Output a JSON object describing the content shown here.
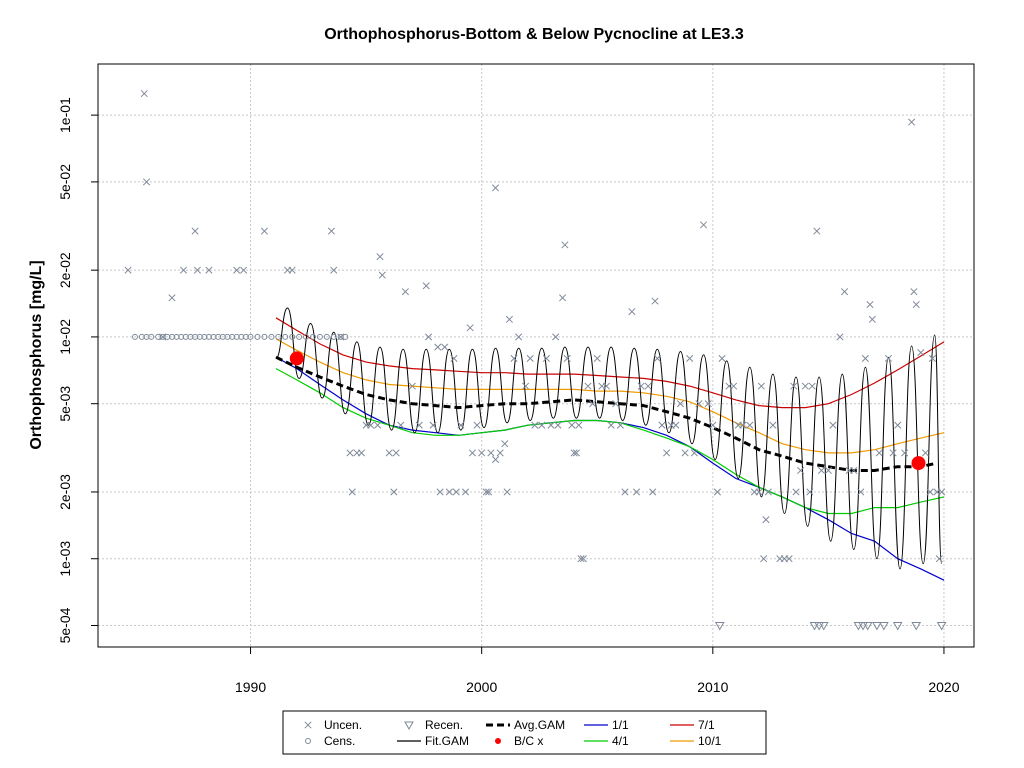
{
  "chart_data": {
    "type": "scatter",
    "title": "Orthophosphorus-Bottom & Below Pycnocline at LE3.3",
    "xlabel": "",
    "ylabel": "Orthophosphorus [mg/L]",
    "y_scale": "log",
    "xlim": [
      1983.4,
      2021.3
    ],
    "ylim": [
      0.0004,
      0.17
    ],
    "x_ticks": [
      1990,
      2000,
      2010,
      2020
    ],
    "x_tick_labels": [
      "1990",
      "2000",
      "2010",
      "2020"
    ],
    "y_ticks": [
      0.0005,
      0.001,
      0.002,
      0.005,
      0.01,
      0.02,
      0.05,
      0.1
    ],
    "y_tick_labels": [
      "5e-04",
      "1e-03",
      "2e-03",
      "5e-03",
      "1e-02",
      "2e-02",
      "5e-02",
      "1e-01"
    ],
    "grid": true,
    "legend_position": "bottom",
    "colors": {
      "uncensored": "#7f8a99",
      "censored": "#7f8a99",
      "recensored": "#7f8a99",
      "fit_gam": "#000000",
      "avg_gam": "#000000",
      "bc": "#ff0000",
      "p1_1": "#0000cd",
      "p4_1": "#00cd00",
      "p7_1": "#cd0000",
      "p10_1": "#ee9a00",
      "grid": "#c8c8c8"
    },
    "legend": [
      {
        "key": "uncen",
        "label": "Uncen."
      },
      {
        "key": "recen",
        "label": "Recen."
      },
      {
        "key": "avg",
        "label": "Avg.GAM"
      },
      {
        "key": "p11",
        "label": "1/1"
      },
      {
        "key": "p71",
        "label": "7/1"
      },
      {
        "key": "cens",
        "label": "Cens."
      },
      {
        "key": "fit",
        "label": "Fit.GAM"
      },
      {
        "key": "bc",
        "label": "B/C x"
      },
      {
        "key": "p41",
        "label": "4/1"
      },
      {
        "key": "p101",
        "label": "10/1"
      }
    ],
    "uncensored_points": [
      [
        1984.7,
        0.02
      ],
      [
        1985.4,
        0.125
      ],
      [
        1985.5,
        0.05
      ],
      [
        1986.2,
        0.01
      ],
      [
        1986.6,
        0.015
      ],
      [
        1987.1,
        0.02
      ],
      [
        1987.6,
        0.03
      ],
      [
        1987.7,
        0.02
      ],
      [
        1988.2,
        0.02
      ],
      [
        1989.4,
        0.02
      ],
      [
        1989.7,
        0.02
      ],
      [
        1990.6,
        0.03
      ],
      [
        1991.6,
        0.02
      ],
      [
        1991.8,
        0.02
      ],
      [
        1993.5,
        0.03
      ],
      [
        1993.6,
        0.02
      ],
      [
        1993.9,
        0.01
      ],
      [
        1994.3,
        0.003
      ],
      [
        1994.4,
        0.002
      ],
      [
        1994.6,
        0.003
      ],
      [
        1994.8,
        0.003
      ],
      [
        1995.0,
        0.004
      ],
      [
        1995.2,
        0.004
      ],
      [
        1995.5,
        0.004
      ],
      [
        1995.6,
        0.023
      ],
      [
        1995.7,
        0.019
      ],
      [
        1996.0,
        0.003
      ],
      [
        1996.2,
        0.002
      ],
      [
        1996.3,
        0.003
      ],
      [
        1996.5,
        0.004
      ],
      [
        1996.7,
        0.016
      ],
      [
        1997.0,
        0.006
      ],
      [
        1997.3,
        0.004
      ],
      [
        1997.6,
        0.017
      ],
      [
        1997.7,
        0.01
      ],
      [
        1997.9,
        0.004
      ],
      [
        1998.1,
        0.009
      ],
      [
        1998.2,
        0.002
      ],
      [
        1998.4,
        0.009
      ],
      [
        1998.6,
        0.002
      ],
      [
        1998.8,
        0.008
      ],
      [
        1998.9,
        0.002
      ],
      [
        1999.1,
        0.004
      ],
      [
        1999.3,
        0.002
      ],
      [
        1999.5,
        0.011
      ],
      [
        1999.6,
        0.003
      ],
      [
        1999.8,
        0.004
      ],
      [
        2000.0,
        0.003
      ],
      [
        2000.2,
        0.002
      ],
      [
        2000.3,
        0.002
      ],
      [
        2000.4,
        0.003
      ],
      [
        2000.6,
        0.0028
      ],
      [
        2000.6,
        0.047
      ],
      [
        2000.8,
        0.003
      ],
      [
        2001.0,
        0.0033
      ],
      [
        2001.1,
        0.002
      ],
      [
        2001.2,
        0.012
      ],
      [
        2001.4,
        0.008
      ],
      [
        2001.6,
        0.01
      ],
      [
        2001.9,
        0.006
      ],
      [
        2002.1,
        0.008
      ],
      [
        2002.3,
        0.004
      ],
      [
        2002.6,
        0.004
      ],
      [
        2002.8,
        0.008
      ],
      [
        2003.0,
        0.004
      ],
      [
        2003.2,
        0.01
      ],
      [
        2003.3,
        0.004
      ],
      [
        2003.5,
        0.015
      ],
      [
        2003.6,
        0.026
      ],
      [
        2003.7,
        0.008
      ],
      [
        2003.9,
        0.004
      ],
      [
        2004.0,
        0.003
      ],
      [
        2004.1,
        0.003
      ],
      [
        2004.2,
        0.004
      ],
      [
        2004.3,
        0.001
      ],
      [
        2004.4,
        0.001
      ],
      [
        2004.6,
        0.006
      ],
      [
        2004.8,
        0.005
      ],
      [
        2005.0,
        0.008
      ],
      [
        2005.2,
        0.006
      ],
      [
        2005.4,
        0.006
      ],
      [
        2005.6,
        0.004
      ],
      [
        2005.8,
        0.005
      ],
      [
        2006.0,
        0.004
      ],
      [
        2006.2,
        0.002
      ],
      [
        2006.5,
        0.013
      ],
      [
        2006.7,
        0.002
      ],
      [
        2006.9,
        0.006
      ],
      [
        2007.2,
        0.006
      ],
      [
        2007.4,
        0.002
      ],
      [
        2007.5,
        0.0145
      ],
      [
        2007.6,
        0.008
      ],
      [
        2007.8,
        0.004
      ],
      [
        2008.0,
        0.003
      ],
      [
        2008.2,
        0.004
      ],
      [
        2008.4,
        0.004
      ],
      [
        2008.6,
        0.005
      ],
      [
        2008.8,
        0.003
      ],
      [
        2009.0,
        0.008
      ],
      [
        2009.2,
        0.003
      ],
      [
        2009.4,
        0.005
      ],
      [
        2009.6,
        0.032
      ],
      [
        2009.8,
        0.005
      ],
      [
        2010.0,
        0.004
      ],
      [
        2010.2,
        0.002
      ],
      [
        2010.4,
        0.008
      ],
      [
        2010.7,
        0.006
      ],
      [
        2010.9,
        0.006
      ],
      [
        2011.1,
        0.004
      ],
      [
        2011.3,
        0.004
      ],
      [
        2011.6,
        0.004
      ],
      [
        2011.8,
        0.002
      ],
      [
        2012.0,
        0.002
      ],
      [
        2012.1,
        0.006
      ],
      [
        2012.2,
        0.001
      ],
      [
        2012.3,
        0.0015
      ],
      [
        2012.4,
        0.002
      ],
      [
        2012.6,
        0.004
      ],
      [
        2012.9,
        0.001
      ],
      [
        2013.1,
        0.001
      ],
      [
        2013.3,
        0.001
      ],
      [
        2013.5,
        0.006
      ],
      [
        2013.6,
        0.002
      ],
      [
        2013.8,
        0.0025
      ],
      [
        2014.0,
        0.006
      ],
      [
        2014.2,
        0.002
      ],
      [
        2014.3,
        0.006
      ],
      [
        2014.5,
        0.03
      ],
      [
        2014.7,
        0.0025
      ],
      [
        2015.0,
        0.0025
      ],
      [
        2015.2,
        0.004
      ],
      [
        2015.5,
        0.01
      ],
      [
        2015.7,
        0.016
      ],
      [
        2015.9,
        0.0025
      ],
      [
        2016.1,
        0.0025
      ],
      [
        2016.4,
        0.002
      ],
      [
        2016.6,
        0.008
      ],
      [
        2016.8,
        0.014
      ],
      [
        2016.9,
        0.012
      ],
      [
        2017.2,
        0.003
      ],
      [
        2017.6,
        0.008
      ],
      [
        2017.8,
        0.003
      ],
      [
        2018.0,
        0.004
      ],
      [
        2018.3,
        0.003
      ],
      [
        2018.6,
        0.093
      ],
      [
        2018.7,
        0.016
      ],
      [
        2018.8,
        0.014
      ],
      [
        2019.0,
        0.0085
      ],
      [
        2019.2,
        0.003
      ],
      [
        2019.4,
        0.002
      ],
      [
        2019.5,
        0.008
      ],
      [
        2019.7,
        0.002
      ],
      [
        2019.8,
        0.001
      ],
      [
        2019.9,
        0.002
      ]
    ],
    "censored_points": [
      [
        1985.0,
        0.01
      ],
      [
        1985.3,
        0.01
      ],
      [
        1985.5,
        0.01
      ],
      [
        1985.7,
        0.01
      ],
      [
        1986.0,
        0.01
      ],
      [
        1986.2,
        0.01
      ],
      [
        1986.4,
        0.01
      ],
      [
        1986.6,
        0.01
      ],
      [
        1986.8,
        0.01
      ],
      [
        1987.0,
        0.01
      ],
      [
        1987.2,
        0.01
      ],
      [
        1987.4,
        0.01
      ],
      [
        1987.6,
        0.01
      ],
      [
        1987.8,
        0.01
      ],
      [
        1988.0,
        0.01
      ],
      [
        1988.2,
        0.01
      ],
      [
        1988.4,
        0.01
      ],
      [
        1988.6,
        0.01
      ],
      [
        1988.8,
        0.01
      ],
      [
        1989.0,
        0.01
      ],
      [
        1989.2,
        0.01
      ],
      [
        1989.4,
        0.01
      ],
      [
        1989.6,
        0.01
      ],
      [
        1989.8,
        0.01
      ],
      [
        1990.0,
        0.01
      ],
      [
        1990.3,
        0.01
      ],
      [
        1990.6,
        0.01
      ],
      [
        1990.9,
        0.01
      ],
      [
        1991.2,
        0.01
      ],
      [
        1991.5,
        0.01
      ],
      [
        1991.8,
        0.01
      ],
      [
        1992.1,
        0.01
      ],
      [
        1992.4,
        0.01
      ],
      [
        1992.7,
        0.01
      ],
      [
        1993.0,
        0.01
      ],
      [
        1993.3,
        0.01
      ],
      [
        1993.6,
        0.01
      ],
      [
        1993.9,
        0.01
      ],
      [
        1994.1,
        0.01
      ]
    ],
    "recensored_points": [
      [
        2010.3,
        0.0005
      ],
      [
        2014.4,
        0.0005
      ],
      [
        2014.6,
        0.0005
      ],
      [
        2014.8,
        0.0005
      ],
      [
        2016.3,
        0.0005
      ],
      [
        2016.5,
        0.0005
      ],
      [
        2016.7,
        0.0005
      ],
      [
        2017.1,
        0.0005
      ],
      [
        2017.4,
        0.0005
      ],
      [
        2018.0,
        0.0005
      ],
      [
        2018.8,
        0.0005
      ],
      [
        2019.9,
        0.0005
      ]
    ],
    "bc_points": [
      [
        1992.0,
        0.008
      ],
      [
        2018.9,
        0.0027
      ]
    ],
    "fit_gam": {
      "x_start": 1991.1,
      "x_end": 2019.9,
      "peaks_x": [
        1991.6,
        1992.6,
        1993.6,
        1994.6,
        1995.6,
        1996.6,
        1997.6,
        1998.6,
        1999.6,
        2000.6,
        2001.6,
        2002.6,
        2003.6,
        2004.6,
        2005.6,
        2006.6,
        2007.6,
        2008.6,
        2009.6,
        2010.6,
        2011.6,
        2012.6,
        2013.6,
        2014.6,
        2015.6,
        2016.6,
        2017.6,
        2018.6,
        2019.6
      ],
      "peaks_y": [
        0.0135,
        0.0115,
        0.0105,
        0.0095,
        0.009,
        0.0088,
        0.0088,
        0.0088,
        0.0088,
        0.0089,
        0.0089,
        0.0089,
        0.009,
        0.009,
        0.009,
        0.0089,
        0.0088,
        0.0086,
        0.0083,
        0.0078,
        0.0073,
        0.0068,
        0.0066,
        0.0066,
        0.0068,
        0.0073,
        0.0081,
        0.0091,
        0.0102
      ],
      "troughs_x": [
        1991.1,
        1992.1,
        1993.1,
        1994.1,
        1995.1,
        1996.1,
        1997.1,
        1998.1,
        1999.1,
        2000.1,
        2001.1,
        2002.1,
        2003.1,
        2004.1,
        2005.1,
        2006.1,
        2007.1,
        2008.1,
        2009.1,
        2010.1,
        2011.1,
        2012.1,
        2013.1,
        2014.1,
        2015.1,
        2016.1,
        2017.1,
        2018.1,
        2019.1,
        2019.9
      ],
      "troughs_y": [
        0.008,
        0.0065,
        0.0053,
        0.0045,
        0.004,
        0.0038,
        0.0037,
        0.0037,
        0.0038,
        0.0039,
        0.0041,
        0.0042,
        0.0043,
        0.0043,
        0.0043,
        0.0042,
        0.004,
        0.0037,
        0.0033,
        0.0028,
        0.0023,
        0.0019,
        0.0016,
        0.0014,
        0.0012,
        0.0011,
        0.001,
        0.0009,
        0.00095,
        0.00095
      ]
    },
    "avg_gam": {
      "x": [
        1991.1,
        1992,
        1993,
        1994,
        1995,
        1996,
        1997,
        1998,
        1999,
        2000,
        2001,
        2002,
        2003,
        2004,
        2005,
        2006,
        2007,
        2008,
        2009,
        2010,
        2011,
        2012,
        2013,
        2014,
        2015,
        2016,
        2017,
        2018,
        2019,
        2019.7
      ],
      "y": [
        0.0081,
        0.0073,
        0.0066,
        0.006,
        0.0055,
        0.0052,
        0.005,
        0.0049,
        0.0048,
        0.0049,
        0.005,
        0.005,
        0.0051,
        0.0052,
        0.0051,
        0.005,
        0.0049,
        0.0046,
        0.0043,
        0.0039,
        0.0035,
        0.0031,
        0.0029,
        0.0027,
        0.0026,
        0.0025,
        0.0025,
        0.0026,
        0.0026,
        0.0027
      ]
    },
    "percentile_lines": [
      {
        "key": "p11",
        "x": [
          1991.1,
          1992,
          1993,
          1994,
          1995,
          1996,
          1997,
          1998,
          1999,
          2000,
          2001,
          2002,
          2003,
          2004,
          2005,
          2006,
          2007,
          2008,
          2009,
          2010,
          2011,
          2012,
          2013,
          2014,
          2015,
          2016,
          2017,
          2018,
          2019,
          2020
        ],
        "y": [
          0.0081,
          0.0072,
          0.0061,
          0.0052,
          0.0045,
          0.004,
          0.0038,
          0.0037,
          0.0036,
          0.0037,
          0.0038,
          0.004,
          0.0041,
          0.0042,
          0.0042,
          0.0041,
          0.0039,
          0.0036,
          0.0032,
          0.0027,
          0.0023,
          0.0021,
          0.0019,
          0.0017,
          0.0015,
          0.0013,
          0.0012,
          0.001,
          0.0009,
          0.0008
        ]
      },
      {
        "key": "p41",
        "x": [
          1991.1,
          1992,
          1993,
          1994,
          1995,
          1996,
          1997,
          1998,
          1999,
          2000,
          2001,
          2002,
          2003,
          2004,
          2005,
          2006,
          2007,
          2008,
          2009,
          2010,
          2011,
          2012,
          2013,
          2014,
          2015,
          2016,
          2017,
          2018,
          2019,
          2020
        ],
        "y": [
          0.0072,
          0.0064,
          0.0056,
          0.0048,
          0.0043,
          0.004,
          0.0037,
          0.0036,
          0.0036,
          0.0037,
          0.0038,
          0.004,
          0.0041,
          0.0042,
          0.0042,
          0.0041,
          0.0038,
          0.0035,
          0.0032,
          0.0028,
          0.0024,
          0.0021,
          0.0019,
          0.0017,
          0.0016,
          0.0016,
          0.0017,
          0.0017,
          0.0018,
          0.0019
        ]
      },
      {
        "key": "p71",
        "x": [
          1991.1,
          1992,
          1993,
          1994,
          1995,
          1996,
          1997,
          1998,
          1999,
          2000,
          2001,
          2002,
          2003,
          2004,
          2005,
          2006,
          2007,
          2008,
          2009,
          2010,
          2011,
          2012,
          2013,
          2014,
          2015,
          2016,
          2017,
          2018,
          2019,
          2020
        ],
        "y": [
          0.0122,
          0.0107,
          0.0093,
          0.0083,
          0.0077,
          0.0074,
          0.0072,
          0.0071,
          0.007,
          0.0069,
          0.0069,
          0.0068,
          0.0068,
          0.0068,
          0.0067,
          0.0066,
          0.0065,
          0.0063,
          0.006,
          0.0056,
          0.0052,
          0.0049,
          0.0048,
          0.0048,
          0.005,
          0.0055,
          0.0062,
          0.0071,
          0.0082,
          0.0095
        ]
      },
      {
        "key": "p101",
        "x": [
          1991.1,
          1992,
          1993,
          1994,
          1995,
          1996,
          1997,
          1998,
          1999,
          2000,
          2001,
          2002,
          2003,
          2004,
          2005,
          2006,
          2007,
          2008,
          2009,
          2010,
          2011,
          2012,
          2013,
          2014,
          2015,
          2016,
          2017,
          2018,
          2019,
          2020
        ],
        "y": [
          0.0098,
          0.0087,
          0.0077,
          0.0069,
          0.0064,
          0.0061,
          0.006,
          0.0059,
          0.0058,
          0.0058,
          0.0058,
          0.0058,
          0.0058,
          0.0058,
          0.0057,
          0.0057,
          0.0056,
          0.0054,
          0.0051,
          0.0046,
          0.0041,
          0.0037,
          0.0033,
          0.0031,
          0.003,
          0.003,
          0.0031,
          0.0033,
          0.0035,
          0.0037
        ]
      }
    ]
  }
}
